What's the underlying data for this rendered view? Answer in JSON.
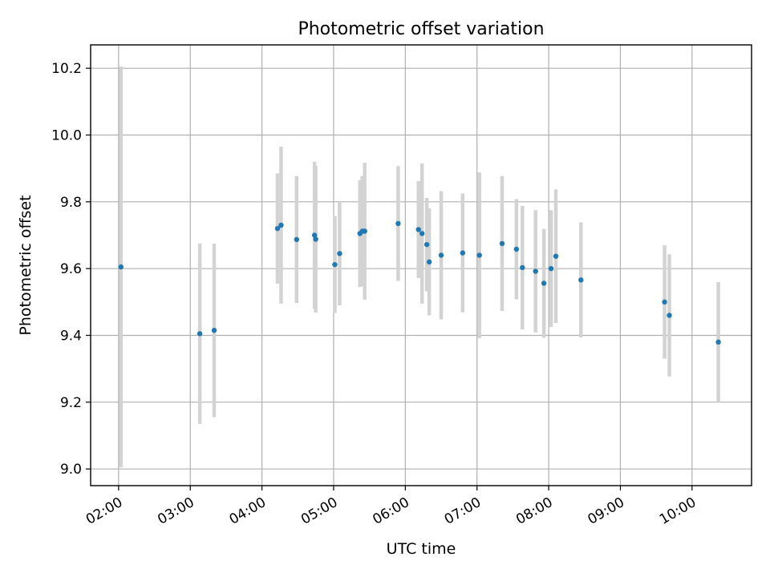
{
  "chart_data": {
    "type": "scatter",
    "title": "Photometric offset variation",
    "xlabel": "UTC time",
    "ylabel": "Photometric offset",
    "x_unit": "hours UTC",
    "xlim_hours": [
      1.61,
      10.83
    ],
    "ylim": [
      8.95,
      10.27
    ],
    "grid": true,
    "marker_color": "#1f77b4",
    "errorbar_color": "#d3d3d3",
    "x_ticks": [
      "02:00",
      "03:00",
      "04:00",
      "05:00",
      "06:00",
      "07:00",
      "08:00",
      "09:00",
      "10:00"
    ],
    "y_ticks": [
      "9.0",
      "9.2",
      "9.4",
      "9.6",
      "9.8",
      "10.0",
      "10.2"
    ],
    "points": [
      {
        "t": "02:02",
        "y": 9.605,
        "err": 0.6
      },
      {
        "t": "03:08",
        "y": 9.405,
        "err": 0.27
      },
      {
        "t": "03:20",
        "y": 9.415,
        "err": 0.26
      },
      {
        "t": "04:13",
        "y": 9.72,
        "err": 0.165
      },
      {
        "t": "04:16",
        "y": 9.73,
        "err": 0.235
      },
      {
        "t": "04:29",
        "y": 9.687,
        "err": 0.19
      },
      {
        "t": "04:44",
        "y": 9.7,
        "err": 0.22
      },
      {
        "t": "04:45",
        "y": 9.688,
        "err": 0.22
      },
      {
        "t": "05:01",
        "y": 9.612,
        "err": 0.145
      },
      {
        "t": "05:05",
        "y": 9.645,
        "err": 0.155
      },
      {
        "t": "05:22",
        "y": 9.705,
        "err": 0.16
      },
      {
        "t": "05:24",
        "y": 9.712,
        "err": 0.165
      },
      {
        "t": "05:26",
        "y": 9.712,
        "err": 0.205
      },
      {
        "t": "05:54",
        "y": 9.735,
        "err": 0.172
      },
      {
        "t": "06:11",
        "y": 9.717,
        "err": 0.145
      },
      {
        "t": "06:14",
        "y": 9.705,
        "err": 0.21
      },
      {
        "t": "06:18",
        "y": 9.672,
        "err": 0.14
      },
      {
        "t": "06:20",
        "y": 9.62,
        "err": 0.16
      },
      {
        "t": "06:30",
        "y": 9.64,
        "err": 0.192
      },
      {
        "t": "06:48",
        "y": 9.647,
        "err": 0.178
      },
      {
        "t": "07:02",
        "y": 9.64,
        "err": 0.248
      },
      {
        "t": "07:21",
        "y": 9.675,
        "err": 0.202
      },
      {
        "t": "07:33",
        "y": 9.658,
        "err": 0.15
      },
      {
        "t": "07:38",
        "y": 9.603,
        "err": 0.185
      },
      {
        "t": "07:49",
        "y": 9.592,
        "err": 0.183
      },
      {
        "t": "07:56",
        "y": 9.556,
        "err": 0.163
      },
      {
        "t": "08:02",
        "y": 9.6,
        "err": 0.175
      },
      {
        "t": "08:06",
        "y": 9.637,
        "err": 0.2
      },
      {
        "t": "08:27",
        "y": 9.566,
        "err": 0.172
      },
      {
        "t": "09:37",
        "y": 9.5,
        "err": 0.17
      },
      {
        "t": "09:41",
        "y": 9.46,
        "err": 0.183
      },
      {
        "t": "10:22",
        "y": 9.38,
        "err": 0.18
      }
    ]
  }
}
